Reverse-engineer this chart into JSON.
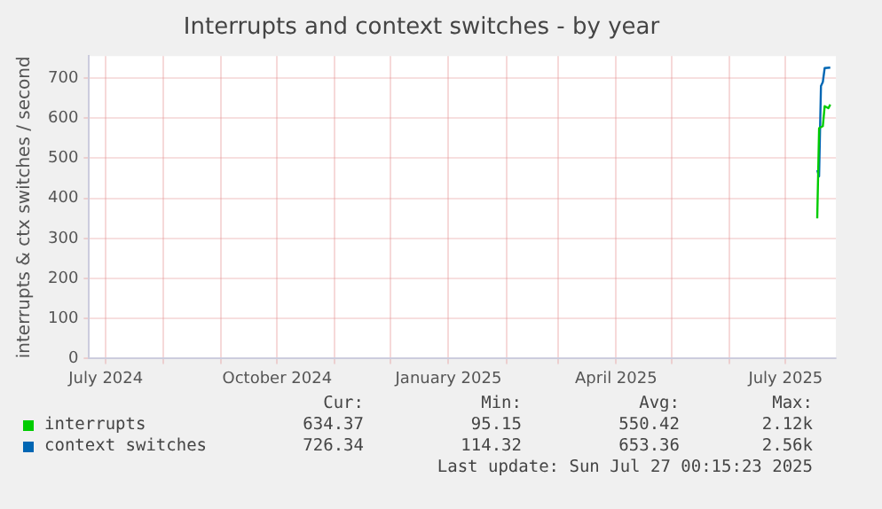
{
  "chart_data": {
    "type": "line",
    "title": "Interrupts and context switches - by year",
    "ylabel": "interrupts & ctx switches / second",
    "series": [
      {
        "name": "interrupts",
        "color": "#00cc00",
        "x": [
          "2025-07-18",
          "2025-07-19",
          "2025-07-21",
          "2025-07-22",
          "2025-07-24",
          "2025-07-25"
        ],
        "values": [
          350,
          575,
          580,
          630,
          625,
          634
        ]
      },
      {
        "name": "context switches",
        "color": "#0066b3",
        "x": [
          "2025-07-18",
          "2025-07-19",
          "2025-07-20",
          "2025-07-21",
          "2025-07-22",
          "2025-07-25"
        ],
        "values": [
          470,
          455,
          680,
          690,
          725,
          726
        ]
      }
    ],
    "xlim": [
      "2024-06-22",
      "2025-07-28"
    ],
    "xticks": [
      {
        "value": "2024-07-01",
        "label": "July 2024"
      },
      {
        "value": "2024-08-01",
        "label": null
      },
      {
        "value": "2024-09-01",
        "label": null
      },
      {
        "value": "2024-10-01",
        "label": "October 2024"
      },
      {
        "value": "2024-11-01",
        "label": null
      },
      {
        "value": "2024-12-01",
        "label": null
      },
      {
        "value": "2025-01-01",
        "label": "January 2025"
      },
      {
        "value": "2025-02-01",
        "label": null
      },
      {
        "value": "2025-03-01",
        "label": null
      },
      {
        "value": "2025-04-01",
        "label": "April 2025"
      },
      {
        "value": "2025-05-01",
        "label": null
      },
      {
        "value": "2025-06-01",
        "label": null
      },
      {
        "value": "2025-07-01",
        "label": "July 2025"
      }
    ],
    "ylim": [
      0,
      755
    ],
    "yticks": [
      0,
      100,
      200,
      300,
      400,
      500,
      600,
      700
    ],
    "grid": true,
    "legend": "bottom",
    "marker": "none",
    "line_style": "solid",
    "annotations": [
      "Cur:",
      "Min:",
      "Avg:",
      "Max:",
      "634.37",
      "95.15",
      "550.42",
      "2.12k",
      "726.34",
      "114.32",
      "653.36",
      "2.56k",
      "Last update: Sun Jul 27 00:15:23 2025"
    ]
  }
}
